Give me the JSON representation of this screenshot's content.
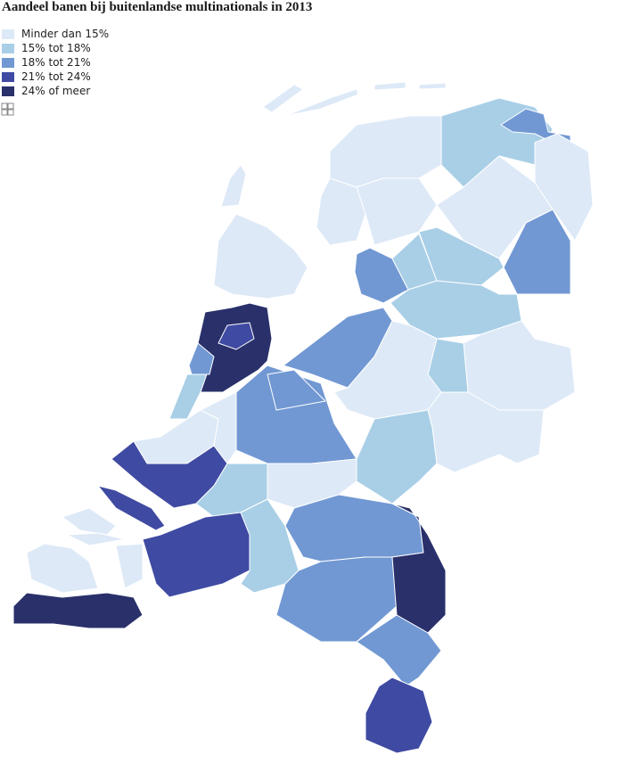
{
  "title": "Aandeel banen bij buitenlandse multinationals in 2013",
  "legend": [
    {
      "label": "Minder dan 15%",
      "color": "#dde9f7"
    },
    {
      "label": "15% tot 18%",
      "color": "#a9cfe7"
    },
    {
      "label": "18% tot 21%",
      "color": "#7198d3"
    },
    {
      "label": "21% tot 24%",
      "color": "#3f4aa2"
    },
    {
      "label": "24% of meer",
      "color": "#29306a"
    }
  ]
}
